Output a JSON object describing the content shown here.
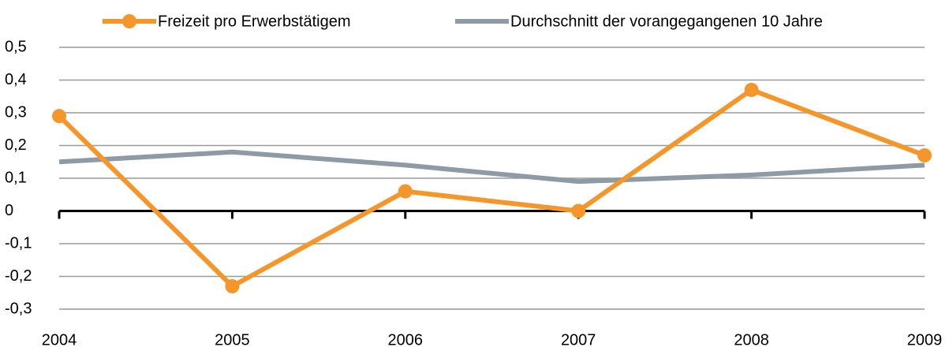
{
  "chart_data": {
    "type": "line",
    "x": [
      2004,
      2005,
      2006,
      2007,
      2008,
      2009
    ],
    "xlim": [
      2004,
      2009
    ],
    "xticks": [
      2004,
      2005,
      2006,
      2007,
      2008,
      2009
    ],
    "ylim": [
      -0.3,
      0.5
    ],
    "yticks": [
      {
        "value": -0.3,
        "label": "-0,3"
      },
      {
        "value": -0.2,
        "label": "-0,2"
      },
      {
        "value": -0.1,
        "label": "-0,1"
      },
      0,
      {
        "value": 0.1,
        "label": "0,1"
      },
      {
        "value": 0.2,
        "label": "0,2"
      },
      {
        "value": 0.3,
        "label": "0,3"
      },
      {
        "value": 0.4,
        "label": "0,4"
      },
      {
        "value": 0.5,
        "label": "0,5"
      }
    ],
    "grid": true,
    "legend": "top",
    "series": [
      {
        "name": "Freizeit pro Erwerbstätigem",
        "color": "#f5962b",
        "marker": true,
        "values": [
          0.29,
          -0.23,
          0.06,
          0,
          0.37,
          0.17
        ]
      },
      {
        "name": "Durchschnitt der vorangegangenen 10 Jahre",
        "color": "#8e9aa4",
        "marker": false,
        "values": [
          0.15,
          0.18,
          0.14,
          0.09,
          0.11,
          0.14
        ]
      }
    ]
  }
}
